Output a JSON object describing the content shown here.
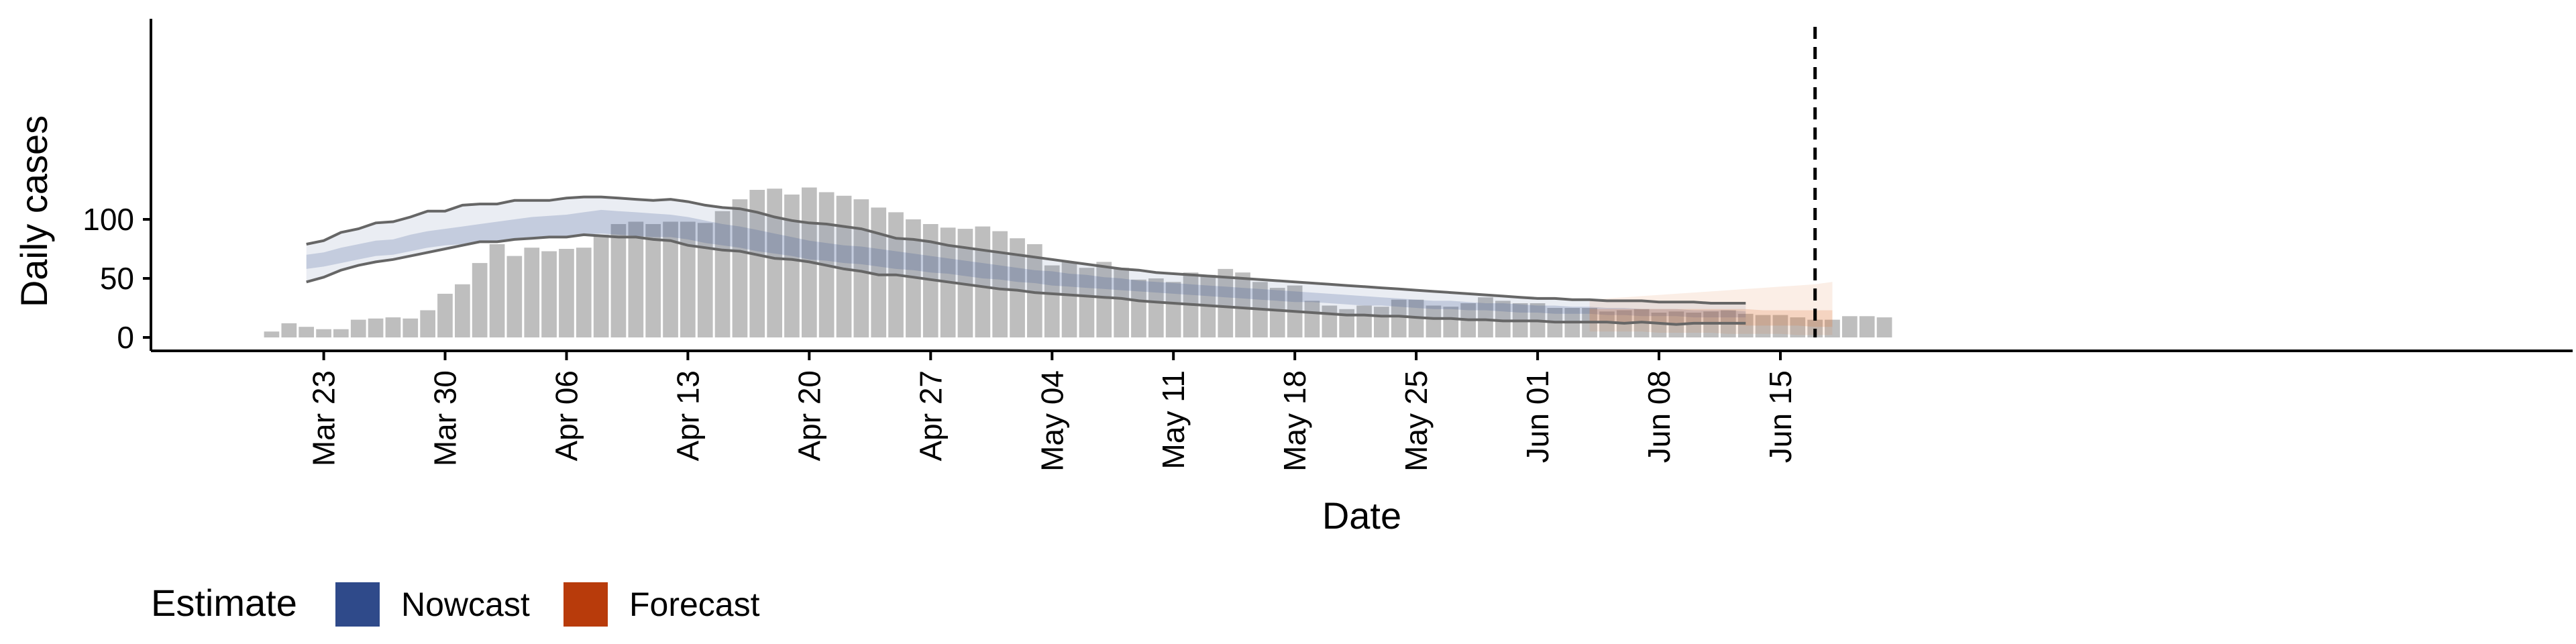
{
  "chart_data": {
    "type": "bar",
    "xlabel": "Date",
    "ylabel": "Daily cases",
    "x_start": "2020-03-20",
    "ylim": [
      -6,
      134
    ],
    "yticks": [
      0,
      50,
      100
    ],
    "xticks": [
      {
        "date": "2020-03-23",
        "label": "Mar 23"
      },
      {
        "date": "2020-03-30",
        "label": "Mar 30"
      },
      {
        "date": "2020-04-06",
        "label": "Apr 06"
      },
      {
        "date": "2020-04-13",
        "label": "Apr 13"
      },
      {
        "date": "2020-04-20",
        "label": "Apr 20"
      },
      {
        "date": "2020-04-27",
        "label": "Apr 27"
      },
      {
        "date": "2020-05-04",
        "label": "May 04"
      },
      {
        "date": "2020-05-11",
        "label": "May 11"
      },
      {
        "date": "2020-05-18",
        "label": "May 18"
      },
      {
        "date": "2020-05-25",
        "label": "May 25"
      },
      {
        "date": "2020-06-01",
        "label": "Jun 01"
      },
      {
        "date": "2020-06-08",
        "label": "Jun 08"
      },
      {
        "date": "2020-06-15",
        "label": "Jun 15"
      }
    ],
    "reported_cases": [
      5,
      12,
      9,
      7,
      7,
      15,
      16,
      17,
      16,
      23,
      37,
      45,
      63,
      79,
      69,
      76,
      73,
      75,
      76,
      87,
      96,
      98,
      96,
      98,
      98,
      97,
      107,
      117,
      125,
      126,
      121,
      127,
      123,
      120,
      117,
      110,
      106,
      100,
      96,
      93,
      92,
      94,
      90,
      84,
      79,
      61,
      64,
      59,
      64,
      59,
      49,
      50,
      47,
      55,
      53,
      58,
      55,
      47,
      42,
      44,
      31,
      27,
      24,
      27,
      26,
      32,
      32,
      27,
      26,
      29,
      34,
      31,
      29,
      29,
      25,
      25,
      25,
      22,
      23,
      24,
      21,
      22,
      21,
      22,
      23,
      20,
      19,
      19,
      17,
      15,
      15,
      18,
      18,
      17
    ],
    "nowcast_dates": [
      "2020-03-22",
      "2020-06-03"
    ],
    "nowcast": {
      "outer_upper": [
        79,
        82,
        89,
        92,
        97,
        98,
        102,
        107,
        107,
        112,
        113,
        113,
        116,
        116,
        116,
        118,
        119,
        119,
        118,
        117,
        116,
        117,
        115,
        112,
        110,
        109,
        106,
        102,
        99,
        97,
        96,
        94,
        92,
        88,
        84,
        83,
        81,
        78,
        76,
        74,
        72,
        70,
        68,
        66,
        64,
        62,
        60,
        58,
        57,
        55,
        54,
        53,
        52,
        51,
        50,
        49,
        48,
        47,
        46,
        45,
        44,
        43,
        42,
        41,
        40,
        39,
        38,
        37,
        36,
        35,
        34,
        33,
        33,
        32,
        32,
        31,
        31,
        31,
        30,
        30,
        30,
        29,
        29,
        29
      ],
      "inner_upper": [
        70,
        72,
        76,
        79,
        82,
        83,
        87,
        90,
        92,
        94,
        96,
        98,
        100,
        102,
        103,
        104,
        106,
        108,
        107,
        106,
        105,
        104,
        102,
        99,
        96,
        94,
        91,
        88,
        85,
        82,
        80,
        78,
        77,
        75,
        73,
        71,
        69,
        67,
        65,
        63,
        61,
        59,
        57,
        56,
        54,
        53,
        51,
        50,
        48,
        47,
        46,
        45,
        44,
        43,
        42,
        41,
        40,
        39,
        38,
        37,
        36,
        35,
        34,
        33,
        32,
        31,
        31,
        30,
        29,
        29,
        28,
        27,
        27,
        26,
        26,
        25,
        25,
        24,
        24,
        24,
        23,
        23,
        23,
        22
      ],
      "inner_lower": [
        58,
        60,
        63,
        66,
        69,
        70,
        73,
        76,
        78,
        79,
        81,
        82,
        84,
        85,
        86,
        86,
        87,
        88,
        87,
        86,
        85,
        85,
        83,
        80,
        78,
        76,
        73,
        71,
        69,
        66,
        65,
        63,
        62,
        60,
        58,
        57,
        55,
        54,
        52,
        50,
        49,
        47,
        46,
        44,
        43,
        42,
        41,
        40,
        39,
        38,
        37,
        36,
        35,
        34,
        33,
        32,
        31,
        30,
        30,
        29,
        28,
        27,
        27,
        26,
        25,
        24,
        24,
        23,
        23,
        22,
        21,
        21,
        20,
        20,
        20,
        19,
        19,
        18,
        18,
        18,
        17,
        17,
        17,
        17
      ],
      "outer_lower": [
        47,
        51,
        57,
        61,
        64,
        66,
        69,
        72,
        75,
        78,
        81,
        81,
        83,
        84,
        85,
        85,
        87,
        86,
        85,
        85,
        83,
        82,
        78,
        76,
        74,
        73,
        70,
        67,
        66,
        64,
        61,
        58,
        56,
        53,
        53,
        51,
        49,
        47,
        45,
        43,
        41,
        40,
        38,
        37,
        36,
        35,
        34,
        33,
        31,
        30,
        29,
        28,
        27,
        26,
        25,
        24,
        23,
        22,
        21,
        20,
        19,
        19,
        18,
        18,
        17,
        16,
        16,
        15,
        15,
        14,
        14,
        14,
        13,
        13,
        13,
        13,
        12,
        13,
        12,
        11,
        12,
        12,
        12,
        12
      ]
    },
    "forecast_dates": [
      "2020-06-04",
      "2020-06-18"
    ],
    "forecast": {
      "outer_upper": [
        32,
        33,
        34,
        35,
        36,
        37,
        38,
        39,
        40,
        41,
        42,
        43,
        44,
        45,
        47
      ],
      "inner_upper": [
        24,
        24,
        24,
        24,
        24,
        24,
        24,
        24,
        24,
        24,
        23,
        23,
        23,
        23,
        23
      ],
      "inner_lower": [
        13,
        13,
        12,
        12,
        12,
        12,
        11,
        11,
        11,
        10,
        10,
        10,
        10,
        9,
        9
      ],
      "outer_lower": [
        5,
        5,
        5,
        5,
        4,
        4,
        4,
        4,
        3,
        3,
        3,
        3,
        2,
        2,
        2
      ]
    },
    "vline_date": "2020-06-17",
    "legend": {
      "title": "Estimate",
      "items": [
        {
          "label": "Nowcast",
          "color": "#2f4a8a"
        },
        {
          "label": "Forecast",
          "color": "#b83b0b"
        }
      ]
    },
    "colors": {
      "bars": "#bebebe",
      "nowcast_band": "#2f4a8a",
      "forecast_band": "#e07a40",
      "ci_lines": "#666666"
    },
    "grid": false,
    "legend_position": "bottom-left"
  }
}
